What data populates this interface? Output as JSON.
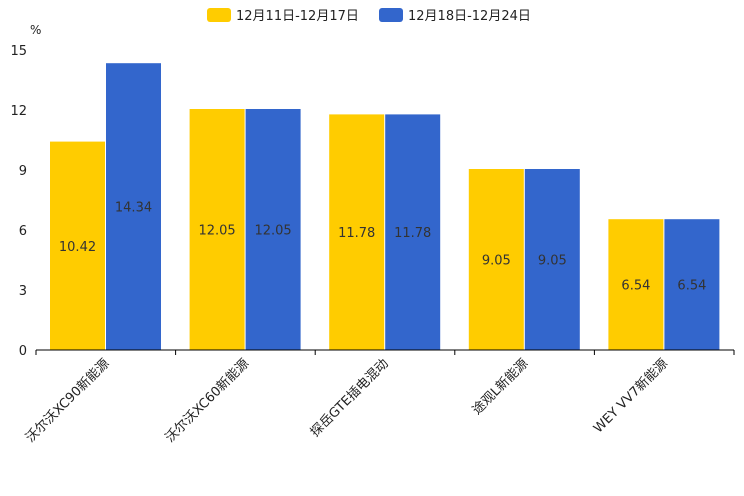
{
  "chart_data": {
    "type": "bar",
    "title": "",
    "xlabel": "",
    "ylabel": "%",
    "ylim": [
      0,
      15
    ],
    "yticks": [
      0,
      3,
      6,
      9,
      12,
      15
    ],
    "grid": false,
    "legend_position": "top-center",
    "categories": [
      "沃尔沃XC90新能源",
      "沃尔沃XC60新能源",
      "探岳GTE插电混动",
      "途观L新能源",
      "WEY VV7新能源"
    ],
    "series": [
      {
        "name": "12月11日-12月17日",
        "color": "#FFCC00",
        "values": [
          10.42,
          12.05,
          11.78,
          9.05,
          6.54
        ]
      },
      {
        "name": "12月18日-12月24日",
        "color": "#3366CC",
        "values": [
          14.34,
          12.05,
          11.78,
          9.05,
          6.54
        ]
      }
    ]
  }
}
